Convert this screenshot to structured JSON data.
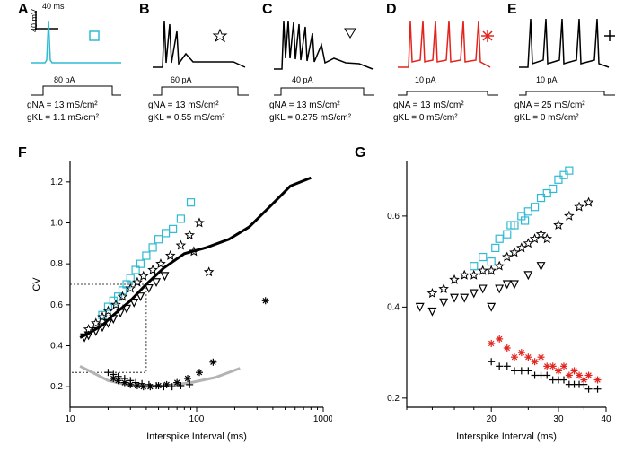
{
  "panels": {
    "A": {
      "label": "A",
      "gNA": "gNA = 13 mS/cm²",
      "gKL": "gKL = 1.1 mS/cm²",
      "stim": "80 pA",
      "color": "#2fbad3"
    },
    "B": {
      "label": "B",
      "gNA": "gNA = 13 mS/cm²",
      "gKL": "gKL = 0.55  mS/cm²",
      "stim": "60 pA",
      "color": "#000000"
    },
    "C": {
      "label": "C",
      "gNA": "gNA = 13 mS/cm²",
      "gKL": "gKL = 0.275 mS/cm²",
      "stim": "40 pA",
      "color": "#000000"
    },
    "D": {
      "label": "D",
      "gNA": "gNA = 13 mS/cm²",
      "gKL": "gKL = 0  mS/cm²",
      "stim": "10 pA",
      "color": "#e3231d"
    },
    "E": {
      "label": "E",
      "gNA": "gNA = 25 mS/cm²",
      "gKL": "gKL = 0  mS/cm²",
      "stim": "10 pA",
      "color": "#000000"
    },
    "scale": {
      "y": "40 mV",
      "x": "40 ms"
    }
  },
  "panelF": {
    "label": "F",
    "xlabel": "Interspike Interval (ms)",
    "ylabel": "CV",
    "xlim": [
      10,
      1000
    ],
    "xscale": "log",
    "xticks": [
      10,
      100,
      1000
    ],
    "ylim": [
      0.1,
      1.3
    ],
    "yticks": [
      0.2,
      0.4,
      0.6,
      0.8,
      1.0,
      1.2
    ],
    "dashed_box": {
      "x": [
        10,
        40
      ],
      "y": [
        0.27,
        0.7
      ]
    },
    "curves": {
      "black": {
        "color": "#000000",
        "width": 3,
        "pts": [
          [
            12,
            0.44
          ],
          [
            14,
            0.46
          ],
          [
            18,
            0.5
          ],
          [
            22,
            0.55
          ],
          [
            30,
            0.62
          ],
          [
            40,
            0.7
          ],
          [
            55,
            0.78
          ],
          [
            80,
            0.85
          ],
          [
            120,
            0.88
          ],
          [
            180,
            0.92
          ],
          [
            260,
            0.98
          ],
          [
            380,
            1.08
          ],
          [
            550,
            1.18
          ],
          [
            800,
            1.22
          ]
        ]
      },
      "gray": {
        "color": "#b3b3b3",
        "width": 3,
        "pts": [
          [
            12,
            0.3
          ],
          [
            15,
            0.27
          ],
          [
            20,
            0.23
          ],
          [
            28,
            0.21
          ],
          [
            40,
            0.2
          ],
          [
            60,
            0.205
          ],
          [
            90,
            0.22
          ],
          [
            140,
            0.245
          ],
          [
            220,
            0.29
          ]
        ]
      }
    },
    "series": [
      {
        "marker": "square",
        "color": "#2fbad3",
        "pts": [
          [
            18,
            0.55
          ],
          [
            20,
            0.59
          ],
          [
            22,
            0.62
          ],
          [
            24,
            0.64
          ],
          [
            26,
            0.67
          ],
          [
            28,
            0.7
          ],
          [
            30,
            0.73
          ],
          [
            33,
            0.77
          ],
          [
            36,
            0.8
          ],
          [
            40,
            0.84
          ],
          [
            45,
            0.88
          ],
          [
            50,
            0.92
          ],
          [
            57,
            0.95
          ],
          [
            65,
            0.97
          ],
          [
            75,
            1.02
          ],
          [
            90,
            1.1
          ]
        ]
      },
      {
        "marker": "star",
        "color": "#000000",
        "pts": [
          [
            14,
            0.48
          ],
          [
            16,
            0.51
          ],
          [
            18,
            0.54
          ],
          [
            20,
            0.57
          ],
          [
            23,
            0.6
          ],
          [
            26,
            0.64
          ],
          [
            30,
            0.68
          ],
          [
            34,
            0.71
          ],
          [
            38,
            0.74
          ],
          [
            45,
            0.77
          ],
          [
            52,
            0.8
          ],
          [
            62,
            0.84
          ],
          [
            75,
            0.89
          ],
          [
            88,
            0.94
          ],
          [
            105,
            1.0
          ],
          [
            125,
            0.76
          ],
          [
            95,
            0.86
          ]
        ]
      },
      {
        "marker": "triangle",
        "color": "#000000",
        "pts": [
          [
            13,
            0.44
          ],
          [
            14,
            0.45
          ],
          [
            16,
            0.47
          ],
          [
            18,
            0.49
          ],
          [
            20,
            0.51
          ],
          [
            22,
            0.53
          ],
          [
            25,
            0.56
          ],
          [
            28,
            0.58
          ],
          [
            32,
            0.61
          ],
          [
            36,
            0.64
          ],
          [
            42,
            0.68
          ],
          [
            48,
            0.71
          ],
          [
            56,
            0.74
          ]
        ]
      },
      {
        "marker": "asterisk",
        "color": "#000000",
        "pts": [
          [
            22,
            0.24
          ],
          [
            24,
            0.23
          ],
          [
            27,
            0.22
          ],
          [
            30,
            0.21
          ],
          [
            34,
            0.205
          ],
          [
            38,
            0.2
          ],
          [
            43,
            0.2
          ],
          [
            50,
            0.205
          ],
          [
            58,
            0.21
          ],
          [
            70,
            0.22
          ],
          [
            85,
            0.24
          ],
          [
            105,
            0.27
          ],
          [
            135,
            0.32
          ],
          [
            350,
            0.62
          ]
        ]
      },
      {
        "marker": "plus",
        "color": "#000000",
        "pts": [
          [
            20,
            0.27
          ],
          [
            22,
            0.26
          ],
          [
            24,
            0.25
          ],
          [
            27,
            0.24
          ],
          [
            30,
            0.23
          ],
          [
            33,
            0.22
          ],
          [
            37,
            0.215
          ],
          [
            42,
            0.21
          ],
          [
            48,
            0.205
          ],
          [
            55,
            0.2
          ],
          [
            64,
            0.2
          ],
          [
            75,
            0.205
          ],
          [
            88,
            0.21
          ]
        ]
      }
    ]
  },
  "panelG": {
    "label": "G",
    "xlabel": "Interspike Interval (ms)",
    "xlim": [
      12,
      40
    ],
    "xscale": "log",
    "xticks": [
      20,
      30,
      40
    ],
    "xminor": [
      12,
      14,
      16,
      18,
      25,
      35
    ],
    "ylim": [
      0.18,
      0.72
    ],
    "yticks": [
      0.2,
      0.4,
      0.6
    ],
    "series": [
      {
        "marker": "square",
        "color": "#2fbad3",
        "pts": [
          [
            18,
            0.49
          ],
          [
            19,
            0.51
          ],
          [
            20,
            0.5
          ],
          [
            20.5,
            0.53
          ],
          [
            21,
            0.55
          ],
          [
            22,
            0.56
          ],
          [
            22.5,
            0.58
          ],
          [
            23,
            0.58
          ],
          [
            24,
            0.6
          ],
          [
            24.5,
            0.59
          ],
          [
            25,
            0.61
          ],
          [
            26,
            0.62
          ],
          [
            27,
            0.64
          ],
          [
            28,
            0.65
          ],
          [
            29,
            0.66
          ],
          [
            30,
            0.68
          ],
          [
            31,
            0.69
          ],
          [
            32,
            0.7
          ]
        ]
      },
      {
        "marker": "star",
        "color": "#000000",
        "pts": [
          [
            14,
            0.43
          ],
          [
            15,
            0.44
          ],
          [
            16,
            0.46
          ],
          [
            17,
            0.47
          ],
          [
            18,
            0.47
          ],
          [
            19,
            0.48
          ],
          [
            20,
            0.48
          ],
          [
            21,
            0.49
          ],
          [
            22,
            0.51
          ],
          [
            23,
            0.52
          ],
          [
            24,
            0.53
          ],
          [
            25,
            0.54
          ],
          [
            26,
            0.55
          ],
          [
            27,
            0.56
          ],
          [
            28,
            0.55
          ],
          [
            30,
            0.58
          ],
          [
            32,
            0.6
          ],
          [
            34,
            0.62
          ],
          [
            36,
            0.63
          ]
        ]
      },
      {
        "marker": "triangle",
        "color": "#000000",
        "pts": [
          [
            13,
            0.4
          ],
          [
            14,
            0.39
          ],
          [
            15,
            0.41
          ],
          [
            16,
            0.42
          ],
          [
            17,
            0.42
          ],
          [
            18,
            0.43
          ],
          [
            19,
            0.44
          ],
          [
            20,
            0.4
          ],
          [
            21,
            0.44
          ],
          [
            22,
            0.45
          ],
          [
            23,
            0.45
          ],
          [
            25,
            0.47
          ],
          [
            27,
            0.49
          ]
        ]
      },
      {
        "marker": "asterisk",
        "color": "#e3231d",
        "pts": [
          [
            20,
            0.32
          ],
          [
            21,
            0.33
          ],
          [
            22,
            0.31
          ],
          [
            23,
            0.29
          ],
          [
            24,
            0.3
          ],
          [
            25,
            0.29
          ],
          [
            26,
            0.28
          ],
          [
            27,
            0.29
          ],
          [
            28,
            0.27
          ],
          [
            29,
            0.27
          ],
          [
            30,
            0.26
          ],
          [
            31,
            0.27
          ],
          [
            32,
            0.25
          ],
          [
            33,
            0.26
          ],
          [
            34,
            0.25
          ],
          [
            35,
            0.24
          ],
          [
            36,
            0.25
          ],
          [
            38,
            0.24
          ]
        ]
      },
      {
        "marker": "plus",
        "color": "#000000",
        "pts": [
          [
            20,
            0.28
          ],
          [
            21,
            0.27
          ],
          [
            22,
            0.27
          ],
          [
            23,
            0.26
          ],
          [
            24,
            0.26
          ],
          [
            25,
            0.26
          ],
          [
            26,
            0.25
          ],
          [
            27,
            0.25
          ],
          [
            28,
            0.25
          ],
          [
            29,
            0.24
          ],
          [
            30,
            0.24
          ],
          [
            31,
            0.24
          ],
          [
            32,
            0.23
          ],
          [
            33,
            0.23
          ],
          [
            34,
            0.23
          ],
          [
            35,
            0.23
          ],
          [
            36,
            0.22
          ],
          [
            38,
            0.22
          ]
        ]
      }
    ]
  },
  "colors": {
    "bg": "#ffffff",
    "axis": "#000000"
  }
}
